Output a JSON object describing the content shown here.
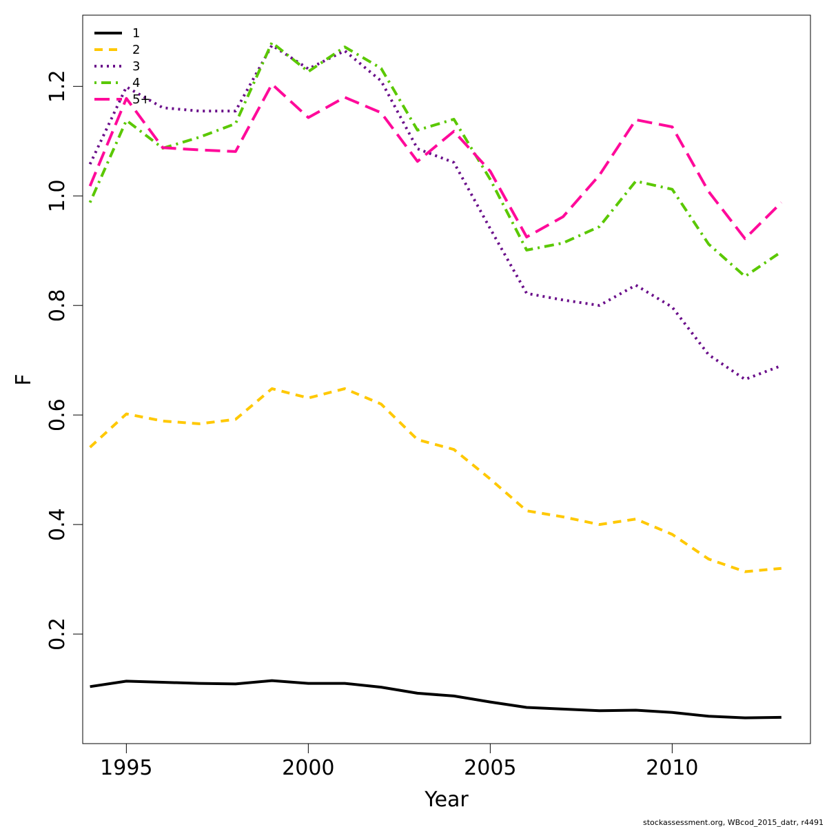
{
  "chart_data": {
    "type": "line",
    "xlabel": "Year",
    "ylabel": "F",
    "xlim": [
      1993.8,
      2013.8
    ],
    "ylim": [
      0.0,
      1.33
    ],
    "x_ticks": [
      1995,
      2000,
      2005,
      2010
    ],
    "y_ticks": [
      0.2,
      0.4,
      0.6,
      0.8,
      1.0,
      1.2
    ],
    "y_tick_labels": [
      "0.2",
      "0.4",
      "0.6",
      "0.8",
      "1.0",
      "1.2"
    ],
    "x_tick_labels": [
      "1995",
      "2000",
      "2005",
      "2010"
    ],
    "grid": false,
    "legend_position": "top-left",
    "x": [
      1994,
      1995,
      1996,
      1997,
      1998,
      1999,
      2000,
      2001,
      2002,
      2003,
      2004,
      2005,
      2006,
      2007,
      2008,
      2009,
      2010,
      2011,
      2012,
      2013
    ],
    "series": [
      {
        "name": "1",
        "color": "#000000",
        "dash": "solid",
        "values": [
          0.104,
          0.114,
          0.112,
          0.11,
          0.109,
          0.115,
          0.11,
          0.11,
          0.103,
          0.092,
          0.087,
          0.076,
          0.066,
          0.063,
          0.06,
          0.061,
          0.057,
          0.05,
          0.047,
          0.048
        ]
      },
      {
        "name": "2",
        "color": "#FFC800",
        "dash": "dashed",
        "values": [
          0.541,
          0.602,
          0.589,
          0.584,
          0.592,
          0.648,
          0.631,
          0.648,
          0.62,
          0.555,
          0.537,
          0.483,
          0.425,
          0.414,
          0.4,
          0.41,
          0.382,
          0.337,
          0.314,
          0.32
        ]
      },
      {
        "name": "3",
        "color": "#6A0E8A",
        "dash": "dotted",
        "values": [
          1.058,
          1.199,
          1.161,
          1.155,
          1.155,
          1.275,
          1.232,
          1.265,
          1.21,
          1.086,
          1.061,
          0.94,
          0.822,
          0.81,
          0.8,
          0.837,
          0.797,
          0.71,
          0.665,
          0.69
        ]
      },
      {
        "name": "4",
        "color": "#5AC800",
        "dash": "dotdash",
        "values": [
          0.988,
          1.138,
          1.087,
          1.107,
          1.132,
          1.28,
          1.227,
          1.272,
          1.233,
          1.12,
          1.14,
          1.03,
          0.901,
          0.914,
          0.944,
          1.027,
          1.012,
          0.912,
          0.853,
          0.898
        ]
      },
      {
        "name": "5+",
        "color": "#FF0A9A",
        "dash": "longdash",
        "values": [
          1.018,
          1.178,
          1.088,
          1.084,
          1.081,
          1.204,
          1.143,
          1.18,
          1.152,
          1.063,
          1.118,
          1.045,
          0.925,
          0.962,
          1.038,
          1.139,
          1.126,
          1.008,
          0.922,
          0.988
        ]
      }
    ]
  },
  "footnote": "stockassessment.org, WBcod_2015_datr, r4491"
}
